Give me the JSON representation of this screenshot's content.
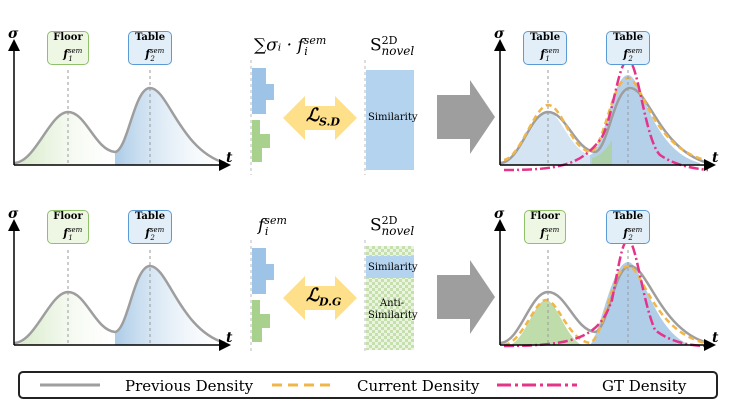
{
  "axes": {
    "y_symbol": "σ",
    "x_symbol": "t"
  },
  "labels": {
    "floor": {
      "name": "Floor",
      "symbol": "f",
      "sup": "sem",
      "sub": "1"
    },
    "table": {
      "name": "Table",
      "symbol": "f",
      "sup": "sem",
      "sub": "2"
    }
  },
  "row1": {
    "feature_expr": "∑σᵢ · f",
    "feature_sup": "sem",
    "feature_sub": "i",
    "novel_base": "S",
    "novel_sup": "2D",
    "novel_sub": "novel",
    "loss_base": "ℒ",
    "loss_sub": "S.D",
    "similarity_text": "Similarity"
  },
  "row2": {
    "feature_expr": "f",
    "feature_sup": "sem",
    "feature_sub": "i",
    "novel_base": "S",
    "novel_sup": "2D",
    "novel_sub": "novel",
    "loss_base": "ℒ",
    "loss_sub": "D.G",
    "similarity_text": "Similarity",
    "anti_similarity_text": "Anti-\nSimilarity"
  },
  "legend": {
    "previous": "Previous Density",
    "current": "Current Density",
    "gt": "GT Density"
  },
  "colors": {
    "previous": "#9e9e9e",
    "current": "#f0b64a",
    "gt": "#e5338a",
    "floor_fill": "#a9d18e",
    "table_fill": "#9dc3e6",
    "arrow": "#9e9e9e",
    "loss_arrow": "#ffe08a"
  }
}
